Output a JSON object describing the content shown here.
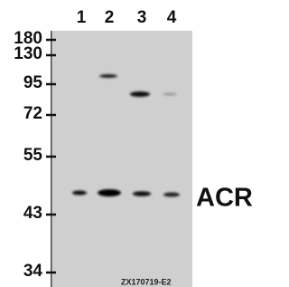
{
  "lanes": [
    "1",
    "2",
    "3",
    "4"
  ],
  "markers": [
    "180",
    "130",
    "95",
    "72",
    "55",
    "43",
    "34"
  ],
  "protein": "ACR",
  "code": "ZX170719-E2"
}
